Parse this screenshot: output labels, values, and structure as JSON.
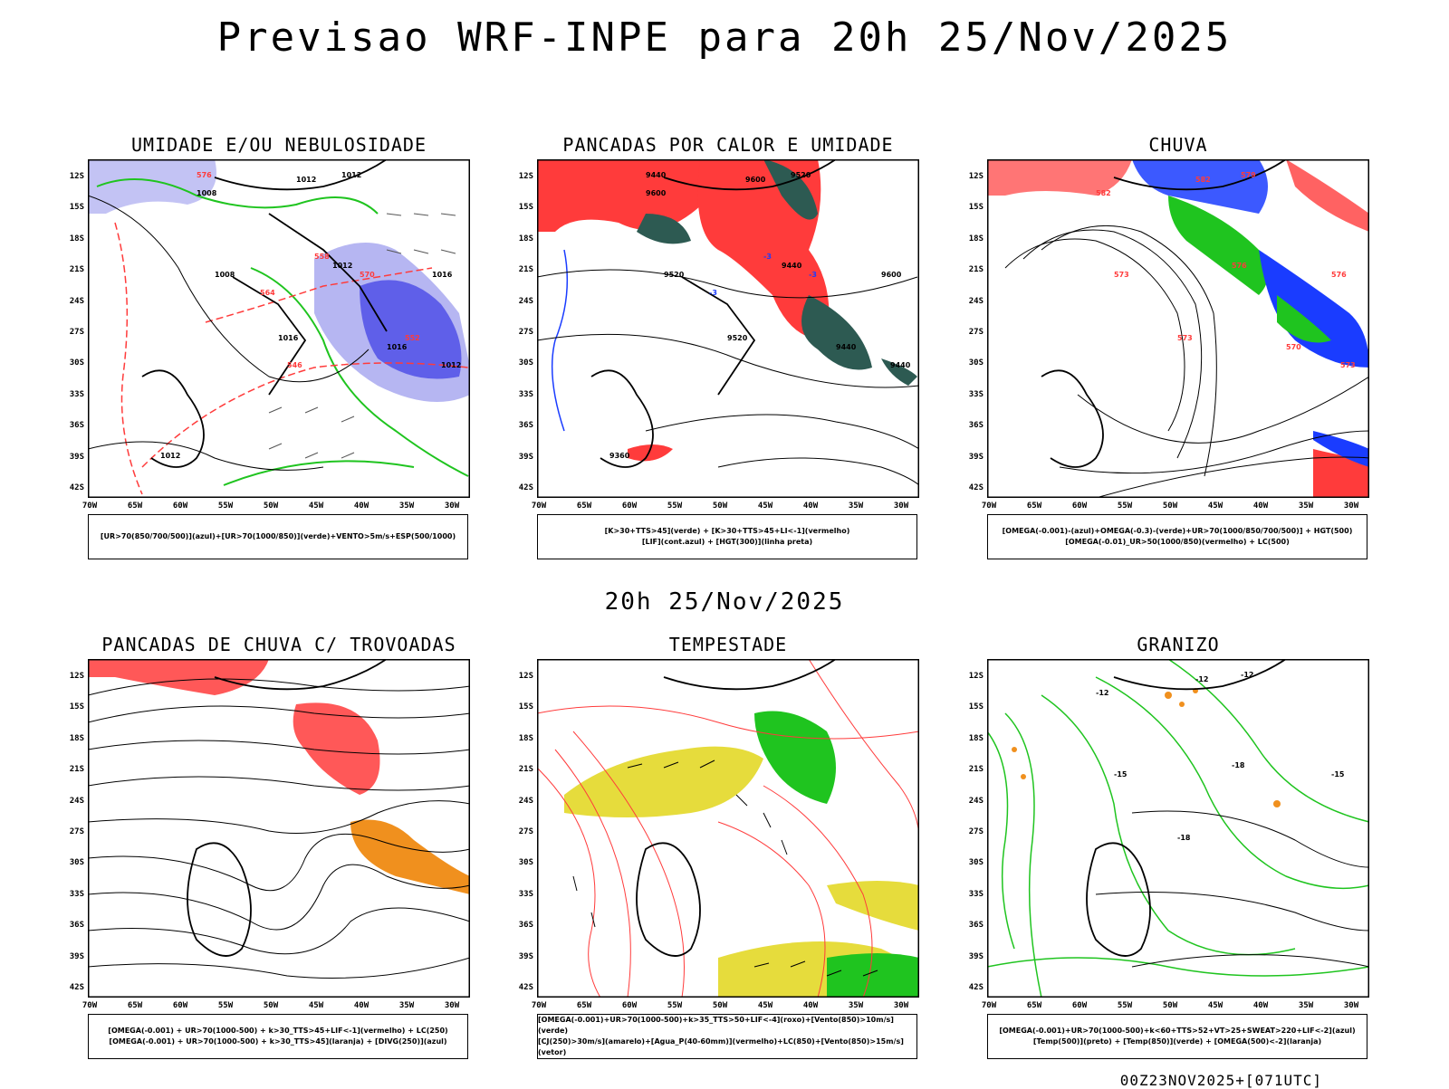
{
  "title": "Previsao WRF-INPE  para 20h 25/Nov/2025",
  "subtitle": "20h 25/Nov/2025",
  "footer": "00Z23NOV2025+[071UTC]",
  "lat_labels": [
    "12S",
    "15S",
    "18S",
    "21S",
    "24S",
    "27S",
    "30S",
    "33S",
    "36S",
    "39S",
    "42S"
  ],
  "lon_labels": [
    "70W",
    "65W",
    "60W",
    "55W",
    "50W",
    "45W",
    "40W",
    "35W",
    "30W"
  ],
  "panels": [
    {
      "title": "UMIDADE E/OU NEBULOSIDADE",
      "legend": [
        "[UR>70(850/700/500)](azul)+[UR>70(1000/850)](verde)+VENTO>5m/s+ESP(500/1000)"
      ],
      "contour_labels": [
        "1008",
        "1012",
        "1012",
        "1016",
        "1008",
        "1012",
        "1016",
        "1016",
        "1012",
        "1012",
        "576",
        "570",
        "564",
        "558",
        "552",
        "546"
      ]
    },
    {
      "title": "PANCADAS POR CALOR E UMIDADE",
      "legend": [
        "[K>30+TTS>45](verde) + [K>30+TTS>45+LI<-1](vermelho)",
        "[LIF](cont.azul) + [HGT(300)](linha preta)"
      ],
      "contour_labels": [
        "9600",
        "9600",
        "9520",
        "9600",
        "9520",
        "9440",
        "9520",
        "9440",
        "9440",
        "9360",
        "9440",
        "-3",
        "-3",
        "-3"
      ]
    },
    {
      "title": "CHUVA",
      "legend": [
        "[OMEGA(-0.001)-(azul)+OMEGA(-0.3)-(verde)+UR>70(1000/850/700/500)] + HGT(500)",
        "[OMEGA(-0.01)_UR>50(1000/850)(vermelho) + LC(500)"
      ],
      "contour_labels": [
        "582",
        "582",
        "579",
        "576",
        "573",
        "576",
        "573",
        "570",
        "573"
      ]
    },
    {
      "title": "PANCADAS DE CHUVA C/ TROVOADAS",
      "legend": [
        "[OMEGA(-0.001) + UR>70(1000-500) + k>30_TTS>45+LIF<-1](vermelho) + LC(250)",
        "[OMEGA(-0.001) + UR>70(1000-500) + k>30_TTS>45](laranja) + [DIVG(250)](azul)"
      ],
      "contour_labels": []
    },
    {
      "title": "TEMPESTADE",
      "legend": [
        "[OMEGA(-0.001)+UR>70(1000-500)+k>35_TTS>50+LIF<-4](roxo)+[Vento(850)>10m/s](verde)",
        "[CJ(250)>30m/s](amarelo)+[Agua_P(40-60mm)](vermelho)+LC(850)+[Vento(850)>15m/s](vetor)"
      ],
      "contour_labels": []
    },
    {
      "title": "GRANIZO",
      "legend": [
        "[OMEGA(-0.001)+UR>70(1000-500)+k<60+TTS>52+VT>25+SWEAT>220+LIF<-2](azul)",
        "[Temp(500)](preto) + [Temp(850)](verde) + [OMEGA(500)<-2](laranja)"
      ],
      "contour_labels": [
        "-12",
        "-12",
        "-12",
        "-15",
        "-15",
        "-18",
        "-18"
      ]
    }
  ],
  "colors": {
    "red": "#ff3b3b",
    "green": "#1fc41f",
    "blue": "#1a3cff",
    "lavender": "#a9a9f0",
    "darkteal": "#2d5a52",
    "yellow": "#e6dc3c",
    "orange": "#f0901e"
  }
}
